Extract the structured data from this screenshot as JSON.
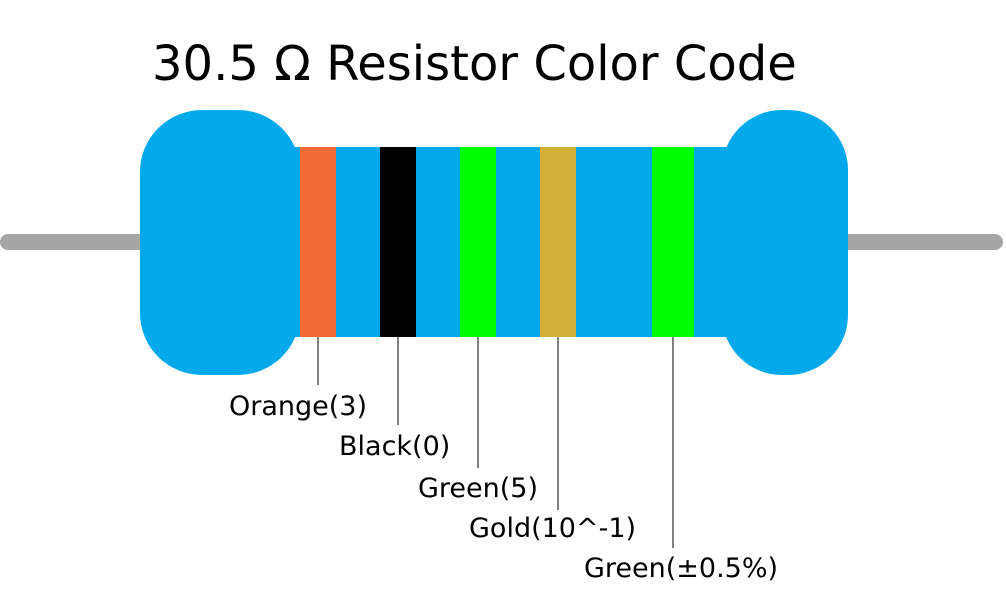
{
  "title": "30.5 Ω Resistor Color Code",
  "bands": [
    {
      "label": "Orange(3)",
      "color": "#f26b36"
    },
    {
      "label": "Black(0)",
      "color": "#000000"
    },
    {
      "label": "Green(5)",
      "color": "#00ff00"
    },
    {
      "label": "Gold(10^-1)",
      "color": "#d4af37"
    },
    {
      "label": "Green(±0.5%)",
      "color": "#00ff00"
    }
  ]
}
